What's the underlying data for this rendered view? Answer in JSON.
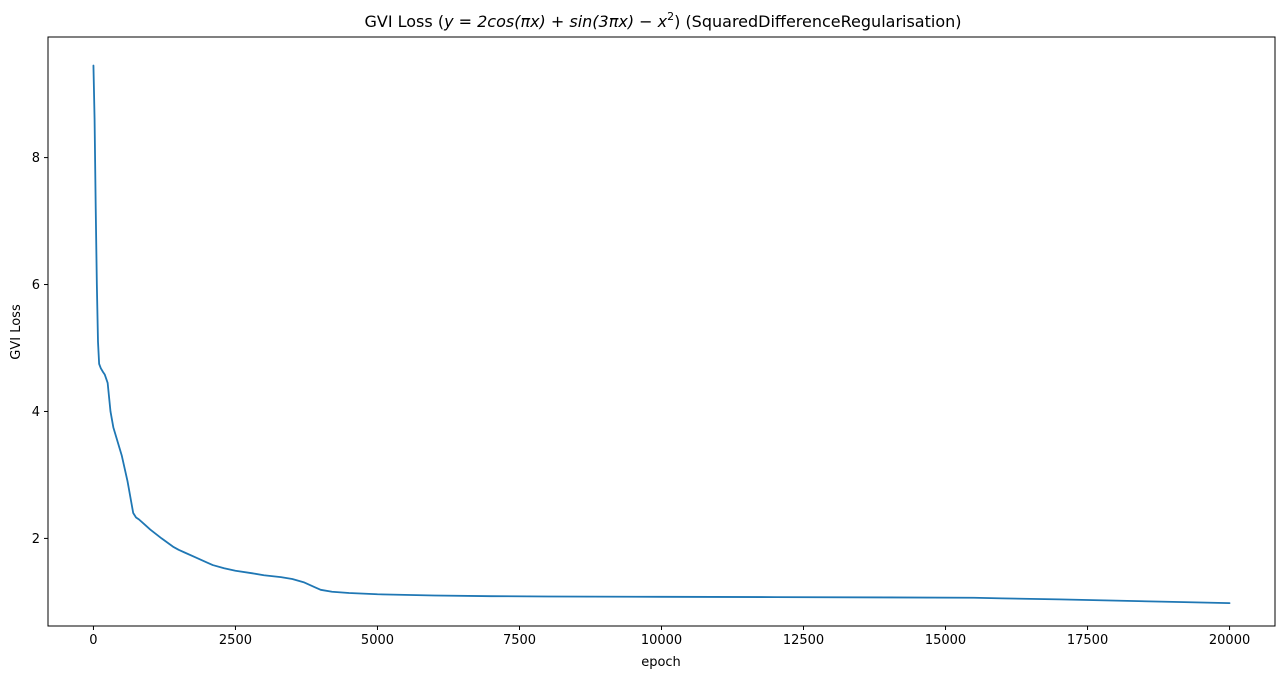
{
  "chart_data": {
    "type": "line",
    "title": "GVI Loss (y = 2cos(πx) + sin(3πx) − x²) (SquaredDifferenceRegularisation)",
    "title_parts": {
      "prefix": "GVI Loss (",
      "math": "y = 2cos(πx) + sin(3πx) − x",
      "superscript": "2",
      "suffix": ") (SquaredDifferenceRegularisation)"
    },
    "xlabel": "epoch",
    "ylabel": "GVI Loss",
    "xlim": [
      -800,
      20800
    ],
    "ylim": [
      0.62,
      9.9
    ],
    "xticks": [
      0,
      2500,
      5000,
      7500,
      10000,
      12500,
      15000,
      17500,
      20000
    ],
    "xtick_labels": [
      "0",
      "2500",
      "5000",
      "7500",
      "10000",
      "12500",
      "15000",
      "17500",
      "20000"
    ],
    "yticks": [
      2,
      4,
      6,
      8
    ],
    "ytick_labels": [
      "2",
      "4",
      "6",
      "8"
    ],
    "grid": false,
    "series": [
      {
        "color": "#1f77b4",
        "x": [
          0,
          20,
          40,
          60,
          80,
          100,
          130,
          170,
          200,
          250,
          300,
          350,
          400,
          500,
          600,
          700,
          750,
          800,
          900,
          1000,
          1200,
          1400,
          1500,
          1600,
          1800,
          2000,
          2100,
          2300,
          2500,
          2800,
          3000,
          3300,
          3500,
          3700,
          3900,
          4000,
          4200,
          4500,
          5000,
          6000,
          7000,
          8000,
          10000,
          12000,
          14000,
          15500,
          16000,
          17000,
          18000,
          19000,
          20000
        ],
        "y": [
          9.45,
          8.6,
          7.2,
          6.0,
          5.1,
          4.75,
          4.68,
          4.62,
          4.58,
          4.45,
          4.0,
          3.75,
          3.6,
          3.3,
          2.9,
          2.4,
          2.33,
          2.3,
          2.22,
          2.14,
          2.0,
          1.87,
          1.82,
          1.78,
          1.7,
          1.62,
          1.58,
          1.53,
          1.49,
          1.45,
          1.42,
          1.39,
          1.36,
          1.31,
          1.23,
          1.19,
          1.16,
          1.14,
          1.12,
          1.1,
          1.09,
          1.085,
          1.08,
          1.075,
          1.07,
          1.065,
          1.055,
          1.04,
          1.02,
          1.0,
          0.98
        ]
      }
    ]
  }
}
